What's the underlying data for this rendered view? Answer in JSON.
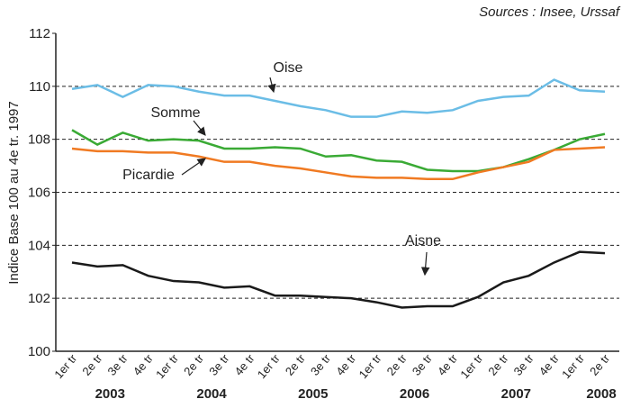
{
  "chart_data": {
    "type": "line",
    "source": "Sources : Insee, Urssaf",
    "y_label": "Indice Base 100 au 4e tr. 1997",
    "categories": [
      "1er tr",
      "2e tr",
      "3e tr",
      "4e tr",
      "1er tr",
      "2e tr",
      "3e tr",
      "4e tr",
      "1er tr",
      "2e tr",
      "3e tr",
      "4e tr",
      "1er tr",
      "2e tr",
      "3e tr",
      "4e tr",
      "1er tr",
      "2e tr",
      "3e tr",
      "4e tr",
      "1er tr",
      "2e tr"
    ],
    "years": [
      "2003",
      "2004",
      "2005",
      "2006",
      "2007",
      "2008"
    ],
    "series": [
      {
        "name": "Oise",
        "color": "#6bbde6",
        "values": [
          109.9,
          110.05,
          109.6,
          110.05,
          110.0,
          109.8,
          109.65,
          109.65,
          109.45,
          109.25,
          109.1,
          108.85,
          108.85,
          109.05,
          109.0,
          109.1,
          109.45,
          109.6,
          109.65,
          110.25,
          109.85,
          109.8
        ]
      },
      {
        "name": "Somme",
        "color": "#3aaa35",
        "values": [
          108.35,
          107.8,
          108.25,
          107.95,
          108.0,
          107.95,
          107.65,
          107.65,
          107.7,
          107.65,
          107.35,
          107.4,
          107.2,
          107.15,
          106.85,
          106.8,
          106.8,
          106.95,
          107.25,
          107.6,
          108.0,
          108.2
        ]
      },
      {
        "name": "Picardie",
        "color": "#f07a22",
        "values": [
          107.65,
          107.55,
          107.55,
          107.5,
          107.5,
          107.35,
          107.15,
          107.15,
          107.0,
          106.9,
          106.75,
          106.6,
          106.55,
          106.55,
          106.5,
          106.5,
          106.75,
          106.95,
          107.15,
          107.6,
          107.65,
          107.7
        ]
      },
      {
        "name": "Aisne",
        "color": "#1a1a1a",
        "values": [
          103.35,
          103.2,
          103.25,
          102.85,
          102.65,
          102.6,
          102.4,
          102.45,
          102.1,
          102.1,
          102.05,
          102.0,
          101.85,
          101.65,
          101.7,
          101.7,
          102.05,
          102.6,
          102.85,
          103.35,
          103.75,
          103.7
        ]
      }
    ],
    "ylim": [
      100,
      112
    ],
    "yticks": [
      100,
      102,
      104,
      106,
      108,
      110,
      112
    ],
    "grid": true
  }
}
